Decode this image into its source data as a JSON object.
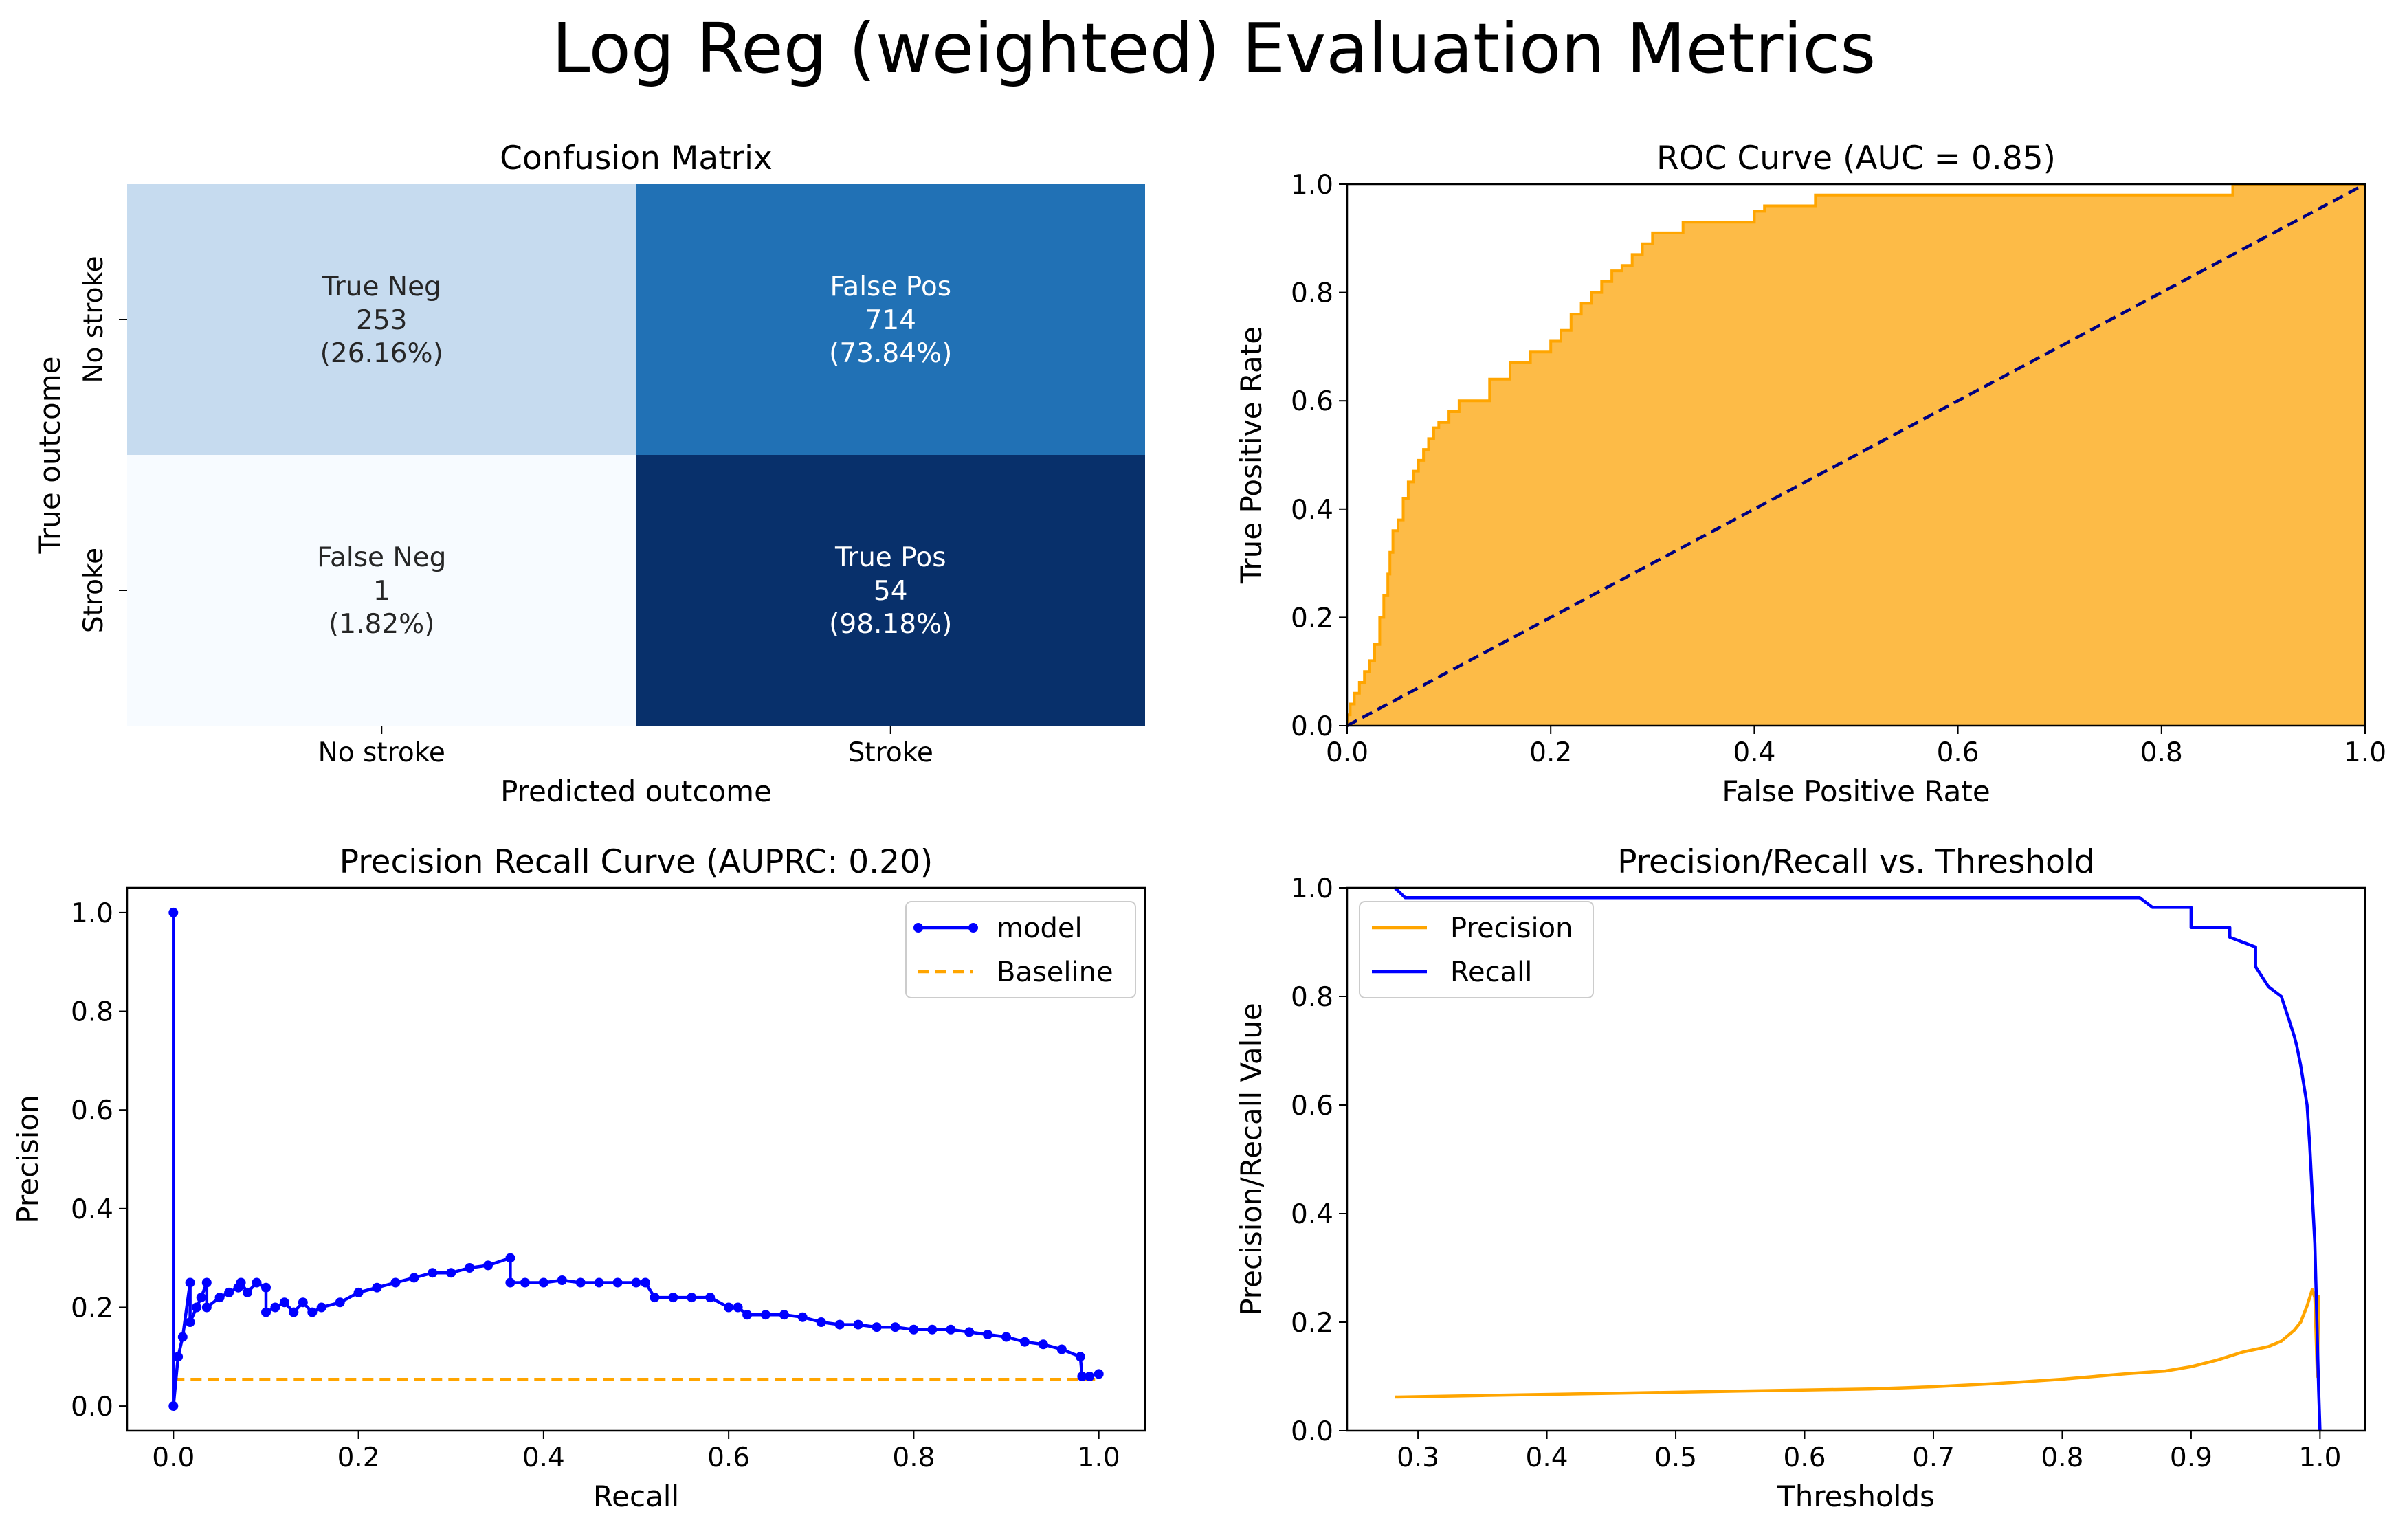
{
  "title": "Log Reg (weighted) Evaluation Metrics",
  "colors": {
    "orange": "#FFA500",
    "orange_fill": "#FDBB47",
    "blue": "#0000FF",
    "navy": "#000080",
    "cm_tn": "#C6DBEF",
    "cm_fp": "#2171B5",
    "cm_fn": "#F7FBFF",
    "cm_tp": "#08306B"
  },
  "chart_data": [
    {
      "type": "heatmap",
      "title": "Confusion Matrix",
      "xlabel": "Predicted outcome",
      "ylabel": "True outcome",
      "x_categories": [
        "No stroke",
        "Stroke"
      ],
      "y_categories": [
        "No stroke",
        "Stroke"
      ],
      "cells": [
        {
          "row": 0,
          "col": 0,
          "label": "True Neg",
          "count": "253",
          "pct": "(26.16%)",
          "value": 253
        },
        {
          "row": 0,
          "col": 1,
          "label": "False Pos",
          "count": "714",
          "pct": "(73.84%)",
          "value": 714
        },
        {
          "row": 1,
          "col": 0,
          "label": "False Neg",
          "count": "1",
          "pct": "(1.82%)",
          "value": 1
        },
        {
          "row": 1,
          "col": 1,
          "label": "True Pos",
          "count": "54",
          "pct": "(98.18%)",
          "value": 54
        }
      ]
    },
    {
      "type": "area",
      "title": "ROC Curve (AUC = 0.85)",
      "xlabel": "False Positive Rate",
      "ylabel": "True Positive Rate",
      "xlim": [
        0,
        1
      ],
      "ylim": [
        0,
        1
      ],
      "xticks": [
        "0.0",
        "0.2",
        "0.4",
        "0.6",
        "0.8",
        "1.0"
      ],
      "yticks": [
        "0.0",
        "0.2",
        "0.4",
        "0.6",
        "0.8",
        "1.0"
      ],
      "roc": {
        "x": [
          0,
          0.003,
          0.007,
          0.012,
          0.017,
          0.022,
          0.027,
          0.032,
          0.036,
          0.04,
          0.042,
          0.045,
          0.05,
          0.055,
          0.06,
          0.065,
          0.07,
          0.075,
          0.08,
          0.085,
          0.09,
          0.1,
          0.11,
          0.12,
          0.14,
          0.16,
          0.18,
          0.2,
          0.21,
          0.22,
          0.23,
          0.24,
          0.25,
          0.26,
          0.27,
          0.28,
          0.29,
          0.3,
          0.31,
          0.33,
          0.35,
          0.38,
          0.4,
          0.41,
          0.43,
          0.46,
          0.5,
          0.6,
          0.7,
          0.8,
          0.86,
          0.87,
          0.9,
          0.95,
          1.0
        ],
        "y": [
          0.02,
          0.04,
          0.06,
          0.08,
          0.1,
          0.12,
          0.15,
          0.2,
          0.24,
          0.28,
          0.32,
          0.36,
          0.38,
          0.42,
          0.45,
          0.47,
          0.49,
          0.51,
          0.53,
          0.55,
          0.56,
          0.58,
          0.6,
          0.6,
          0.64,
          0.67,
          0.69,
          0.71,
          0.73,
          0.76,
          0.78,
          0.8,
          0.82,
          0.84,
          0.85,
          0.87,
          0.89,
          0.91,
          0.91,
          0.93,
          0.93,
          0.93,
          0.95,
          0.96,
          0.96,
          0.98,
          0.98,
          0.98,
          0.98,
          0.98,
          0.98,
          1.0,
          1.0,
          1.0,
          1.0
        ]
      },
      "baseline": {
        "x": [
          0,
          1
        ],
        "y": [
          0,
          1
        ]
      }
    },
    {
      "type": "line",
      "title": "Precision Recall Curve (AUPRC: 0.20)",
      "xlabel": "Recall",
      "ylabel": "Precision",
      "xlim": [
        -0.05,
        1.05
      ],
      "ylim": [
        -0.05,
        1.05
      ],
      "xticks": [
        "0.0",
        "0.2",
        "0.4",
        "0.6",
        "0.8",
        "1.0"
      ],
      "yticks": [
        "0.0",
        "0.2",
        "0.4",
        "0.6",
        "0.8",
        "1.0"
      ],
      "legend_position": "upper right",
      "series": [
        {
          "name": "model",
          "x": [
            0,
            0,
            0.005,
            0.01,
            0.018,
            0.018,
            0.025,
            0.03,
            0.036,
            0.036,
            0.05,
            0.06,
            0.07,
            0.073,
            0.08,
            0.09,
            0.1,
            0.1,
            0.11,
            0.12,
            0.13,
            0.14,
            0.15,
            0.16,
            0.18,
            0.2,
            0.22,
            0.24,
            0.26,
            0.28,
            0.3,
            0.32,
            0.34,
            0.364,
            0.364,
            0.38,
            0.4,
            0.42,
            0.44,
            0.46,
            0.48,
            0.5,
            0.51,
            0.52,
            0.54,
            0.56,
            0.58,
            0.6,
            0.61,
            0.62,
            0.64,
            0.66,
            0.68,
            0.7,
            0.72,
            0.74,
            0.76,
            0.78,
            0.8,
            0.82,
            0.84,
            0.86,
            0.88,
            0.9,
            0.92,
            0.94,
            0.96,
            0.98,
            0.982,
            0.99,
            1.0
          ],
          "y": [
            1.0,
            0.0,
            0.1,
            0.14,
            0.25,
            0.17,
            0.2,
            0.22,
            0.25,
            0.2,
            0.22,
            0.23,
            0.24,
            0.25,
            0.23,
            0.25,
            0.24,
            0.19,
            0.2,
            0.21,
            0.19,
            0.21,
            0.19,
            0.2,
            0.21,
            0.23,
            0.24,
            0.25,
            0.26,
            0.27,
            0.27,
            0.28,
            0.285,
            0.3,
            0.25,
            0.25,
            0.25,
            0.255,
            0.25,
            0.25,
            0.25,
            0.25,
            0.25,
            0.22,
            0.22,
            0.22,
            0.22,
            0.2,
            0.2,
            0.185,
            0.185,
            0.185,
            0.18,
            0.17,
            0.165,
            0.165,
            0.16,
            0.16,
            0.155,
            0.155,
            0.155,
            0.15,
            0.145,
            0.14,
            0.13,
            0.125,
            0.115,
            0.1,
            0.06,
            0.06,
            0.065
          ]
        },
        {
          "name": "Baseline",
          "x": [
            0,
            1.0
          ],
          "y": [
            0.054,
            0.054
          ]
        }
      ]
    },
    {
      "type": "line",
      "title": "Precision/Recall vs. Threshold",
      "xlabel": "Thresholds",
      "ylabel": "Precision/Recall Value",
      "xlim": [
        0.245,
        1.035
      ],
      "ylim": [
        0,
        1
      ],
      "xticks": [
        "0.3",
        "0.4",
        "0.5",
        "0.6",
        "0.7",
        "0.8",
        "0.9",
        "1.0"
      ],
      "yticks": [
        "0.0",
        "0.2",
        "0.4",
        "0.6",
        "0.8",
        "1.0"
      ],
      "legend_position": "upper left",
      "series": [
        {
          "name": "Precision",
          "x": [
            0.282,
            0.35,
            0.45,
            0.55,
            0.65,
            0.7,
            0.75,
            0.8,
            0.85,
            0.88,
            0.9,
            0.92,
            0.94,
            0.96,
            0.97,
            0.98,
            0.985,
            0.99,
            0.994,
            0.996,
            0.998,
            0.999
          ],
          "y": [
            0.062,
            0.065,
            0.069,
            0.073,
            0.077,
            0.081,
            0.087,
            0.095,
            0.105,
            0.11,
            0.118,
            0.13,
            0.145,
            0.155,
            0.165,
            0.185,
            0.2,
            0.23,
            0.26,
            0.245,
            0.1,
            0.25
          ]
        },
        {
          "name": "Recall",
          "x": [
            0.282,
            0.29,
            0.86,
            0.87,
            0.9,
            0.9,
            0.93,
            0.93,
            0.95,
            0.95,
            0.96,
            0.97,
            0.975,
            0.98,
            0.982,
            0.985,
            0.99,
            0.992,
            0.994,
            0.996,
            0.997,
            0.998,
            0.999,
            1.0
          ],
          "y": [
            1.0,
            0.982,
            0.982,
            0.964,
            0.964,
            0.927,
            0.927,
            0.909,
            0.891,
            0.855,
            0.818,
            0.8,
            0.764,
            0.727,
            0.709,
            0.673,
            0.6,
            0.527,
            0.436,
            0.345,
            0.255,
            0.164,
            0.073,
            0.0
          ]
        }
      ]
    }
  ]
}
